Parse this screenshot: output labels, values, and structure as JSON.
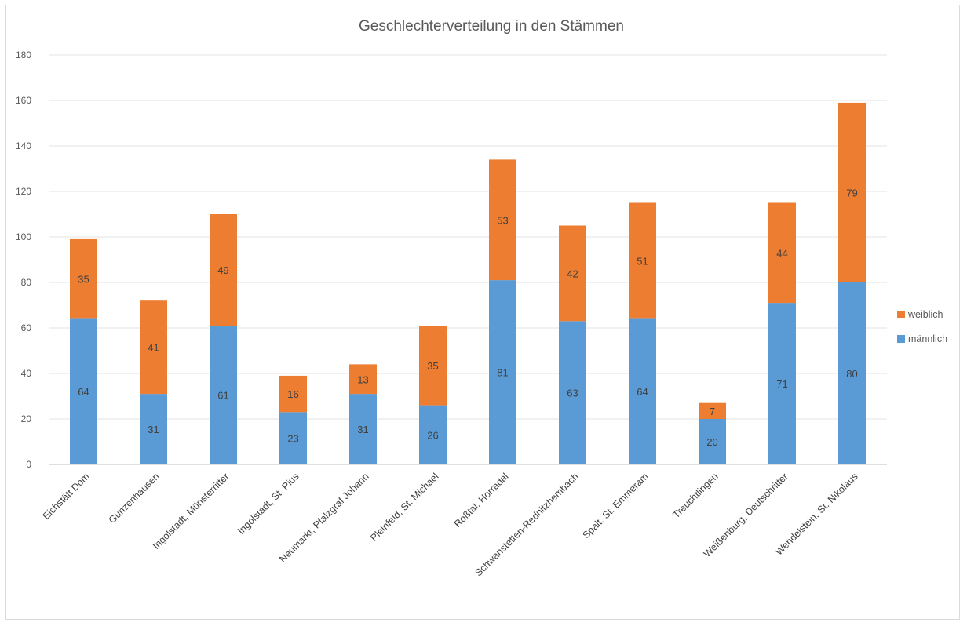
{
  "chart_data": {
    "type": "bar",
    "stacked": true,
    "title": "Geschlechterverteilung in den Stämmen",
    "xlabel": "",
    "ylabel": "",
    "ylim": [
      0,
      180
    ],
    "yticks": [
      0,
      20,
      40,
      60,
      80,
      100,
      120,
      140,
      160,
      180
    ],
    "grid": true,
    "legend_position": "right",
    "categories": [
      "Eichstätt Dom",
      "Gunzenhausen",
      "Ingolstadt, Münsterritter",
      "Ingolstadt, St. Pius",
      "Neumarkt, Pfalzgraf Johann",
      "Pleinfeld, St. Michael",
      "Roßtal, Horradal",
      "Schwanstetten-Rednitzhembach",
      "Spalt, St. Emmeram",
      "Treuchtlingen",
      "Weißenburg, Deutschritter",
      "Wendelstein, St. Nikolaus"
    ],
    "series": [
      {
        "name": "männlich",
        "color": "#5b9bd5",
        "values": [
          64,
          31,
          61,
          23,
          31,
          26,
          81,
          63,
          64,
          20,
          71,
          80
        ]
      },
      {
        "name": "weiblich",
        "color": "#ed7d31",
        "values": [
          35,
          41,
          49,
          16,
          13,
          35,
          53,
          42,
          51,
          7,
          44,
          79
        ]
      }
    ]
  }
}
